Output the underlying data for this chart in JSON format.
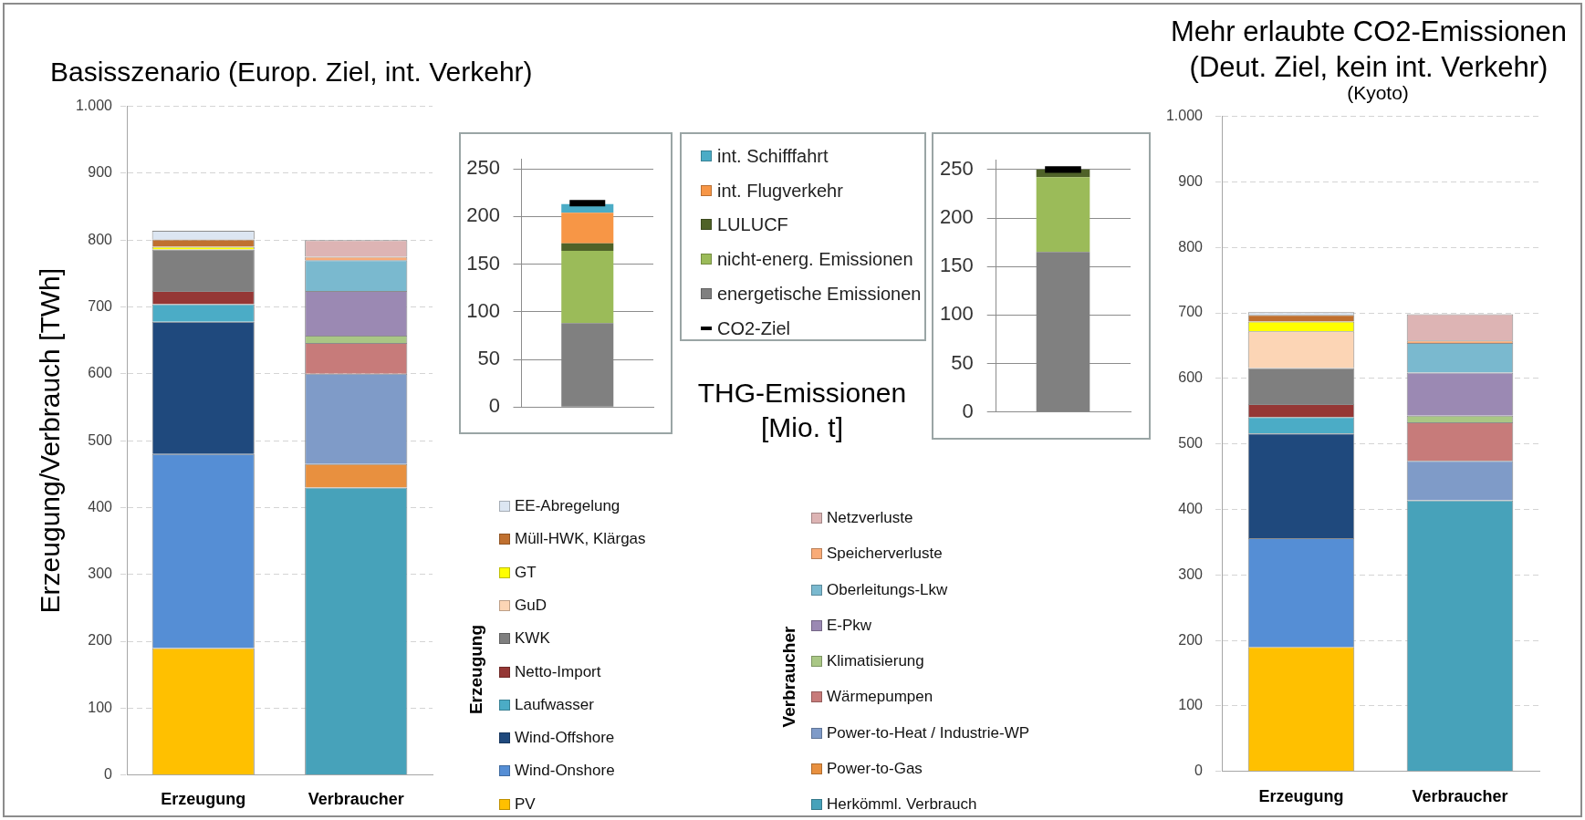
{
  "chart_data": [
    {
      "type": "bar",
      "title": "Basisszenario (Europ. Ziel, int. Verkehr)",
      "ylabel": "Erzeugung/Verbrauch [TWh]",
      "categories": [
        "Erzeugung",
        "Verbraucher"
      ],
      "stacked": true,
      "ylim": [
        0,
        1000
      ],
      "yticks": [
        0,
        100,
        200,
        300,
        400,
        500,
        600,
        700,
        800,
        900,
        {
          "value": 1000,
          "label": "1.000"
        }
      ],
      "grid": "y",
      "legend": "right",
      "series": [
        {
          "name": "PV",
          "color": "#ffc000",
          "values": [
            190,
            null
          ]
        },
        {
          "name": "Wind-Onshore",
          "color": "#558ed5",
          "values": [
            290,
            null
          ]
        },
        {
          "name": "Wind-Offshore",
          "color": "#1f497d",
          "values": [
            198,
            null
          ]
        },
        {
          "name": "Laufwasser",
          "color": "#4bacc6",
          "values": [
            26,
            null
          ]
        },
        {
          "name": "Netto-Import",
          "color": "#953735",
          "values": [
            20,
            null
          ]
        },
        {
          "name": "KWK",
          "color": "#7f7f7f",
          "values": [
            62,
            null
          ]
        },
        {
          "name": "GuD",
          "color": "#fcd5b5",
          "values": [
            0,
            null
          ]
        },
        {
          "name": "GT",
          "color": "#ffff00",
          "values": [
            4,
            null
          ]
        },
        {
          "name": "Müll-HWK, Klärgas",
          "color": "#c0702f",
          "values": [
            11,
            null
          ]
        },
        {
          "name": "EE-Abregelung",
          "color": "#dce6f2",
          "values": [
            13,
            null
          ]
        },
        {
          "name": "Herkömml. Verbrauch",
          "color": "#47a2ba",
          "values": [
            null,
            430
          ]
        },
        {
          "name": "Power-to-Gas",
          "color": "#e8903f",
          "values": [
            null,
            35
          ]
        },
        {
          "name": "Power-to-Heat / Industrie-WP",
          "color": "#7f9bc8",
          "values": [
            null,
            135
          ]
        },
        {
          "name": "Wärmepumpen",
          "color": "#c77b7a",
          "values": [
            null,
            46
          ]
        },
        {
          "name": "Klimatisierung",
          "color": "#a9c785",
          "values": [
            null,
            11
          ]
        },
        {
          "name": "E-Pkw",
          "color": "#9b89b3",
          "values": [
            null,
            67
          ]
        },
        {
          "name": "Oberleitungs-Lkw",
          "color": "#7ab9cf",
          "values": [
            null,
            46
          ]
        },
        {
          "name": "Speicherverluste",
          "color": "#f9ab77",
          "values": [
            null,
            5
          ]
        },
        {
          "name": "Netzverluste",
          "color": "#ddb4b4",
          "values": [
            null,
            25
          ]
        }
      ]
    },
    {
      "type": "bar",
      "categories": [
        null
      ],
      "stacked": true,
      "ylim": [
        0,
        260
      ],
      "yticks": [
        0,
        50,
        100,
        150,
        200,
        250
      ],
      "grid": "y",
      "tick_labels": "y",
      "legend": "right",
      "annotations": [
        "THG-Emissionen [Mio. t]"
      ],
      "ref_lines": [
        {
          "axis": "y",
          "value": 214,
          "label": "CO2-Ziel",
          "color": "#000000"
        }
      ],
      "series": [
        {
          "name": "energetische Emissionen",
          "color": "#808080",
          "values": [
            88
          ]
        },
        {
          "name": "nicht-energ. Emissionen",
          "color": "#9bbb59",
          "values": [
            76
          ]
        },
        {
          "name": "LULUCF",
          "color": "#4f6228",
          "values": [
            8
          ]
        },
        {
          "name": "int. Flugverkehr",
          "color": "#f79646",
          "values": [
            32
          ]
        },
        {
          "name": "int. Schifffahrt",
          "color": "#4bacc6",
          "values": [
            9
          ]
        }
      ]
    },
    {
      "type": "bar",
      "categories": [
        null
      ],
      "stacked": true,
      "ylim": [
        0,
        260
      ],
      "yticks": [
        0,
        50,
        100,
        150,
        200,
        250
      ],
      "grid": "y",
      "tick_labels": "y",
      "ref_lines": [
        {
          "axis": "y",
          "value": 250,
          "color": "#000000"
        }
      ],
      "series": [
        {
          "color": "#808080",
          "values": [
            165
          ]
        },
        {
          "color": "#9bbb59",
          "values": [
            77
          ]
        },
        {
          "color": "#4f6228",
          "values": [
            8
          ]
        }
      ]
    },
    {
      "type": "bar",
      "title": "Mehr erlaubte CO2-Emissionen (Deut. Ziel, kein int. Verkehr)",
      "subtitle": "(Kyoto)",
      "categories": [
        "Erzeugung",
        "Verbraucher"
      ],
      "stacked": true,
      "ylim": [
        0,
        1000
      ],
      "yticks": [
        0,
        100,
        200,
        300,
        400,
        500,
        600,
        700,
        800,
        900,
        {
          "value": 1000,
          "label": "1.000"
        }
      ],
      "grid": "y",
      "series": [
        {
          "color": "#ffc000",
          "values": [
            190,
            null
          ]
        },
        {
          "color": "#558ed5",
          "values": [
            166,
            null
          ]
        },
        {
          "color": "#1f497d",
          "values": [
            160,
            null
          ]
        },
        {
          "color": "#4bacc6",
          "values": [
            25,
            null
          ]
        },
        {
          "color": "#953735",
          "values": [
            20,
            null
          ]
        },
        {
          "color": "#7f7f7f",
          "values": [
            55,
            null
          ]
        },
        {
          "color": "#fcd5b5",
          "values": [
            56,
            null
          ]
        },
        {
          "color": "#ffff00",
          "values": [
            15,
            null
          ]
        },
        {
          "color": "#c0702f",
          "values": [
            10,
            null
          ]
        },
        {
          "color": "#dce6f2",
          "values": [
            4,
            null
          ]
        },
        {
          "color": "#47a2ba",
          "values": [
            null,
            414
          ]
        },
        {
          "color": "#7f9bc8",
          "values": [
            null,
            60
          ]
        },
        {
          "color": "#c77b7a",
          "values": [
            null,
            59
          ]
        },
        {
          "color": "#a9c785",
          "values": [
            null,
            10
          ]
        },
        {
          "color": "#9b89b3",
          "values": [
            null,
            66
          ]
        },
        {
          "color": "#7ab9cf",
          "values": [
            null,
            45
          ]
        },
        {
          "color": "#f9ab77",
          "values": [
            null,
            4
          ]
        },
        {
          "color": "#ddb4b4",
          "values": [
            null,
            40
          ]
        }
      ]
    }
  ]
}
